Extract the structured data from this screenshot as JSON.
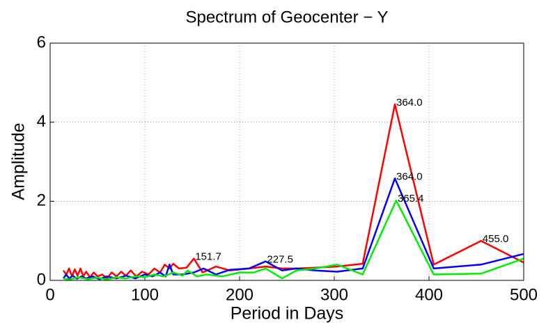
{
  "chart_data": {
    "type": "line",
    "title": "Spectrum of Geocenter − Y",
    "x_label": "Period in Days",
    "y_label": "Amplitude",
    "xlim": [
      0,
      500
    ],
    "ylim": [
      0,
      6
    ],
    "xticks": [
      0,
      100,
      200,
      300,
      400,
      500
    ],
    "yticks": [
      0,
      2,
      4,
      6
    ],
    "grid": true,
    "series": [
      {
        "color": "#ff0000",
        "x": [
          14,
          17,
          20,
          23,
          26,
          29,
          32,
          35,
          38,
          42,
          46,
          50,
          55,
          60,
          65,
          70,
          75,
          80,
          85,
          91,
          97,
          104,
          110,
          116,
          121,
          126,
          130,
          136,
          144,
          151.7,
          161,
          175,
          190,
          210,
          227.5,
          245,
          260,
          280,
          303,
          330,
          364,
          405,
          455,
          500
        ],
        "values": [
          0.25,
          0.15,
          0.3,
          0.1,
          0.28,
          0.12,
          0.3,
          0.1,
          0.22,
          0.08,
          0.2,
          0.1,
          0.15,
          0.05,
          0.2,
          0.1,
          0.22,
          0.12,
          0.25,
          0.1,
          0.22,
          0.15,
          0.3,
          0.2,
          0.4,
          0.3,
          0.42,
          0.3,
          0.32,
          0.55,
          0.2,
          0.35,
          0.25,
          0.3,
          0.35,
          0.3,
          0.3,
          0.32,
          0.35,
          0.42,
          4.45,
          0.4,
          1.0,
          0.45
        ]
      },
      {
        "color": "#0000ff",
        "x": [
          14,
          17,
          20,
          24,
          28,
          33,
          38,
          45,
          52,
          60,
          70,
          80,
          90,
          100,
          108,
          116,
          122,
          126,
          130,
          140,
          151.7,
          162,
          175,
          190,
          210,
          227.5,
          245,
          260,
          280,
          303,
          330,
          364,
          405,
          455,
          500
        ],
        "values": [
          0.05,
          0.15,
          0.05,
          0.12,
          0.04,
          0.1,
          0.05,
          0.1,
          0.03,
          0.1,
          0.05,
          0.12,
          0.05,
          0.15,
          0.1,
          0.2,
          0.1,
          0.4,
          0.15,
          0.15,
          0.2,
          0.3,
          0.15,
          0.27,
          0.3,
          0.48,
          0.25,
          0.3,
          0.25,
          0.22,
          0.3,
          2.58,
          0.3,
          0.4,
          0.67
        ]
      },
      {
        "color": "#00ee00",
        "x": [
          14,
          20,
          30,
          40,
          50,
          60,
          70,
          80,
          90,
          100,
          110,
          120,
          130,
          140,
          145,
          155,
          165,
          182,
          200,
          215,
          227.5,
          245,
          260,
          280,
          303,
          330,
          365.4,
          405,
          455,
          500
        ],
        "values": [
          0.05,
          0.02,
          0.08,
          0.03,
          0.07,
          0.02,
          0.08,
          0.05,
          0.1,
          0.08,
          0.15,
          0.1,
          0.2,
          0.12,
          0.25,
          0.1,
          0.15,
          0.1,
          0.2,
          0.2,
          0.3,
          0.05,
          0.25,
          0.3,
          0.4,
          0.15,
          2.02,
          0.15,
          0.17,
          0.55
        ]
      }
    ],
    "annotations": [
      {
        "text": "151.7",
        "x": 151.7,
        "y": 0.55
      },
      {
        "text": "227.5",
        "x": 227.5,
        "y": 0.48
      },
      {
        "text": "364.0",
        "x": 364,
        "y": 4.45
      },
      {
        "text": "364.0",
        "x": 364,
        "y": 2.58
      },
      {
        "text": "365.4",
        "x": 365.4,
        "y": 2.02
      },
      {
        "text": "455.0",
        "x": 455,
        "y": 1.0
      }
    ]
  }
}
